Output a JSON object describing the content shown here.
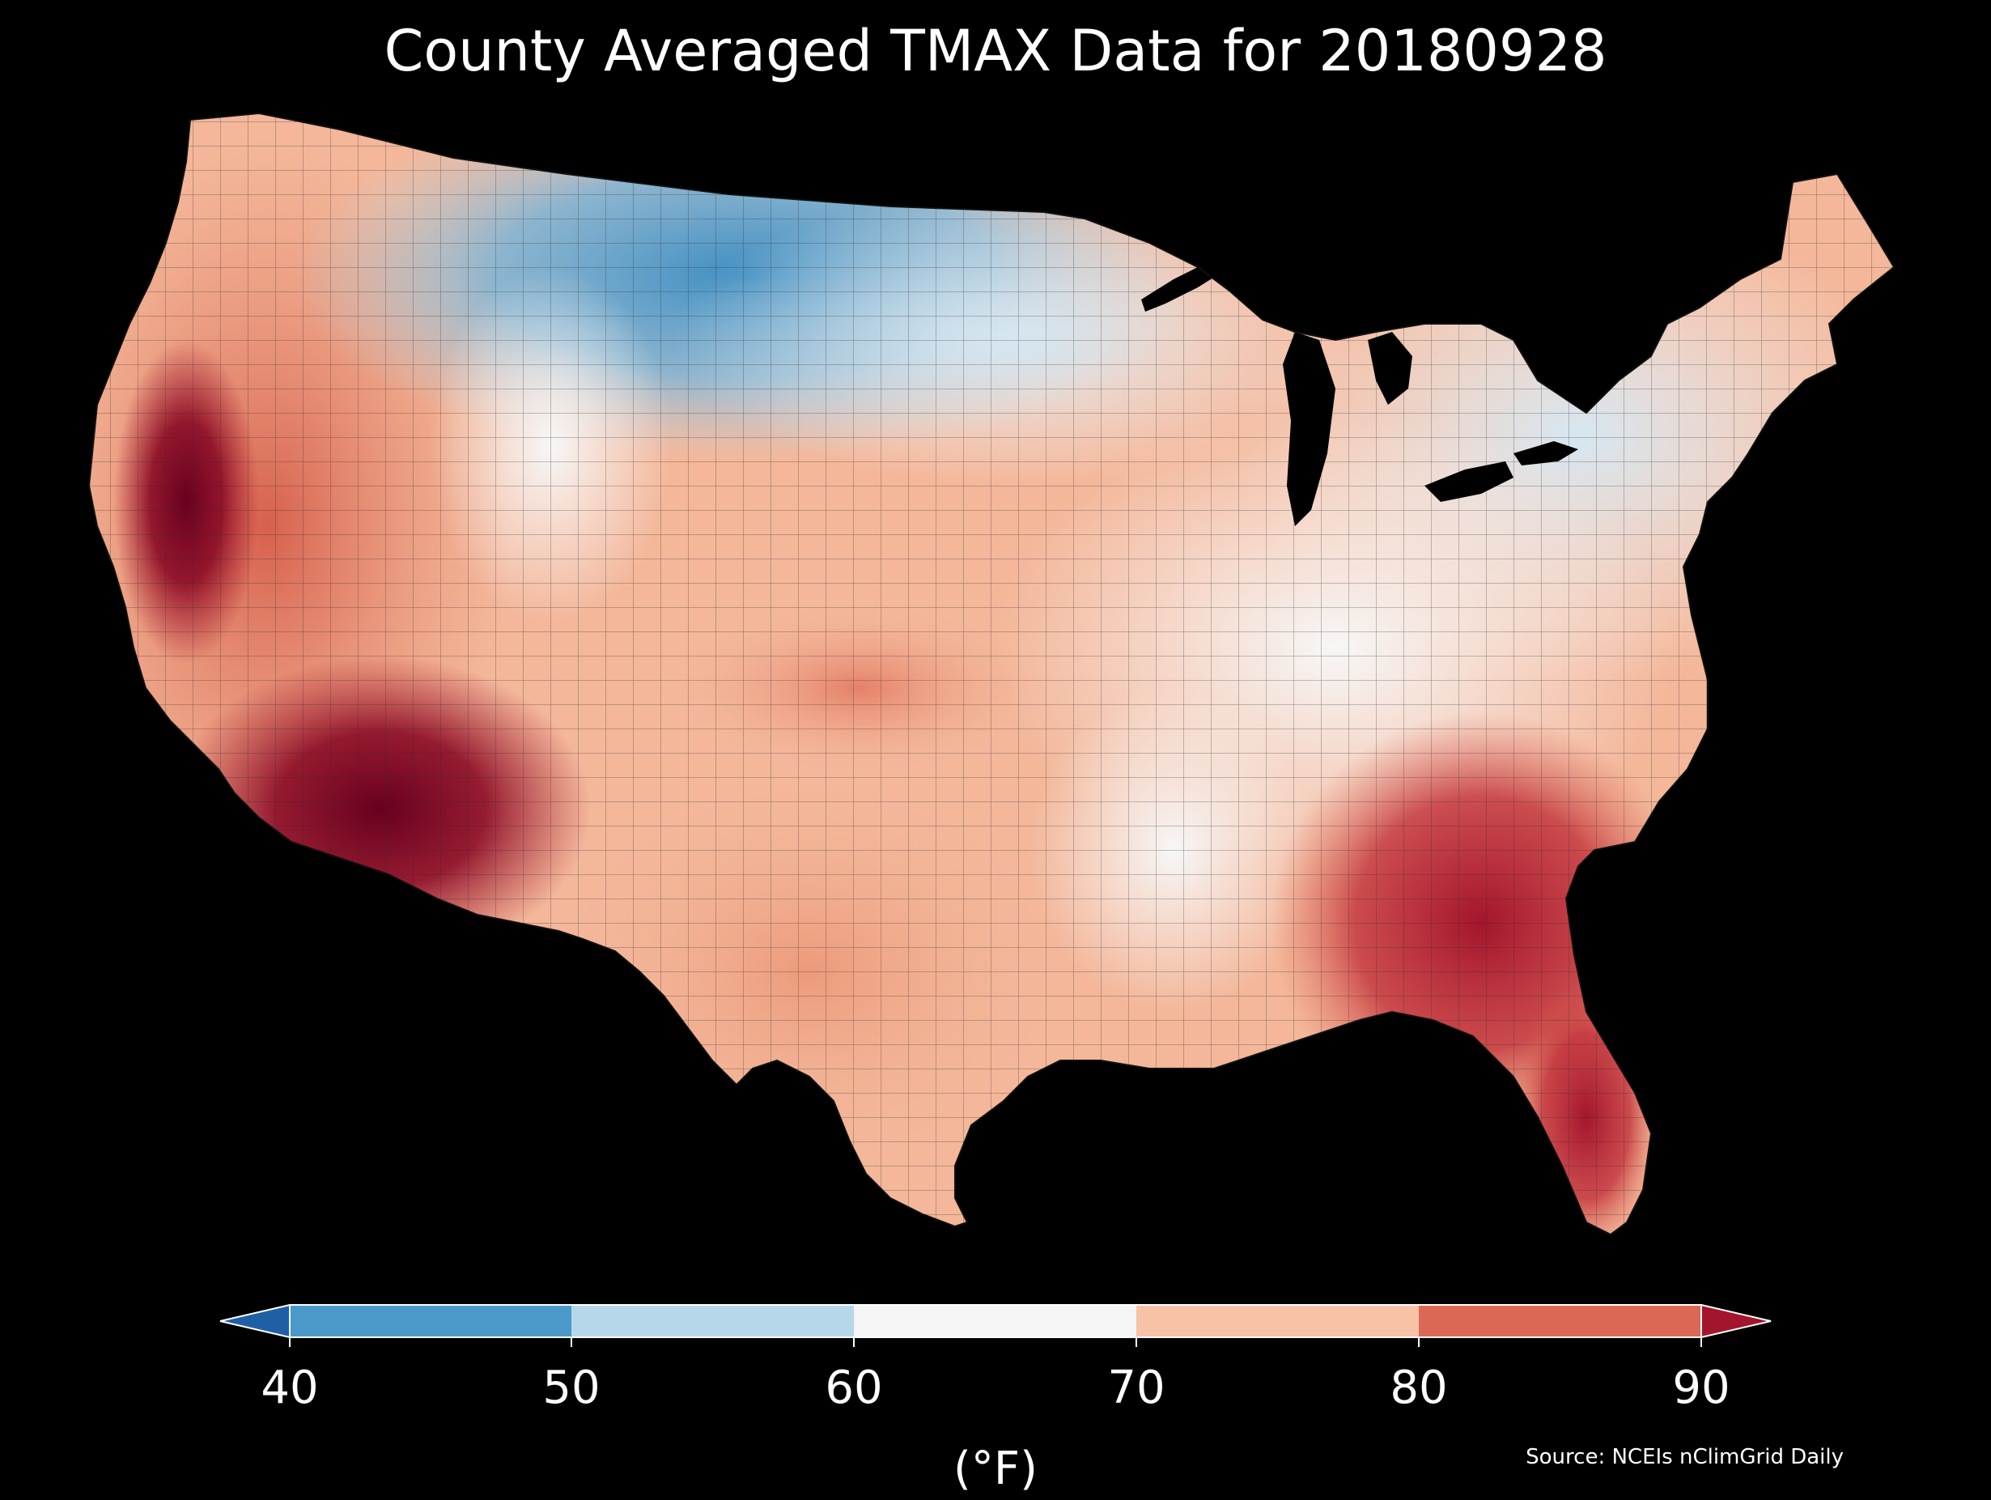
{
  "title": "County Averaged TMAX Data for 20180928",
  "colorbar": {
    "ticks": [
      "40",
      "50",
      "60",
      "70",
      "80",
      "90"
    ],
    "unit": "(°F)",
    "colors": {
      "below_40": "#1f5fa6",
      "40_50": "#4b99c8",
      "50_60": "#b6d7e9",
      "60_70": "#f5f5f5",
      "70_80": "#f8c2a6",
      "80_90": "#db6854",
      "above_90": "#a3152c"
    }
  },
  "source": "Source: NCEIs nClimGrid Daily",
  "map": {
    "background": "#000000",
    "border_color": "#222222"
  }
}
